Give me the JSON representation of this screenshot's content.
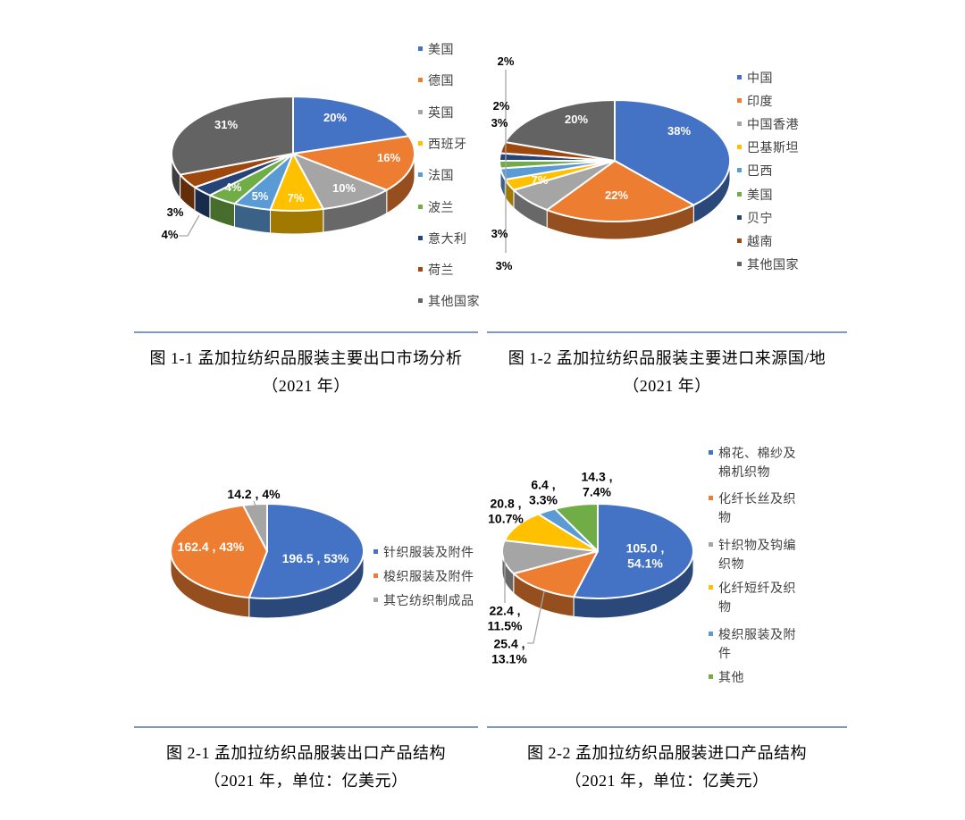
{
  "page": {
    "background": "#ffffff",
    "divider_color": "#7F97CB",
    "legend_text_color": "#404040",
    "palette": {
      "blue": "#4472C4",
      "orange": "#ED7D31",
      "gray": "#A5A5A5",
      "gold": "#FFC000",
      "lightblue": "#5B9BD5",
      "green": "#70AD47",
      "navy": "#264478",
      "brown": "#9E480E",
      "darkgray": "#636363"
    }
  },
  "chart_data": [
    {
      "id": "fig-1-1",
      "type": "pie",
      "caption_lines": [
        "图 1-1 孟加拉纺织品服装主要出口市场分析",
        "（2021 年）"
      ],
      "legend_position": "right",
      "slices": [
        {
          "label": "美国",
          "pct": 20,
          "text": "20%",
          "color": "#4472C4"
        },
        {
          "label": "德国",
          "pct": 16,
          "text": "16%",
          "color": "#ED7D31"
        },
        {
          "label": "英国",
          "pct": 10,
          "text": "10%",
          "color": "#A5A5A5"
        },
        {
          "label": "西班牙",
          "pct": 7,
          "text": "7%",
          "color": "#FFC000"
        },
        {
          "label": "法国",
          "pct": 5,
          "text": "5%",
          "color": "#5B9BD5"
        },
        {
          "label": "波兰",
          "pct": 4,
          "text": "4%",
          "color": "#70AD47"
        },
        {
          "label": "意大利",
          "pct": 3,
          "text": "3%",
          "color": "#264478"
        },
        {
          "label": "荷兰",
          "pct": 4,
          "text": "4%",
          "color": "#9E480E"
        },
        {
          "label": "其他国家",
          "pct": 31,
          "text": "31%",
          "color": "#636363"
        }
      ]
    },
    {
      "id": "fig-1-2",
      "type": "pie",
      "caption_lines": [
        "图 1-2 孟加拉纺织品服装主要进口来源国/地",
        "（2021 年）"
      ],
      "legend_position": "right",
      "slices": [
        {
          "label": "中国",
          "pct": 38,
          "text": "38%",
          "color": "#4472C4"
        },
        {
          "label": "印度",
          "pct": 22,
          "text": "22%",
          "color": "#ED7D31"
        },
        {
          "label": "中国香港",
          "pct": 7,
          "text": "7%",
          "color": "#A5A5A5"
        },
        {
          "label": "巴基斯坦",
          "pct": 3,
          "text": "3%",
          "color": "#FFC000"
        },
        {
          "label": "巴西",
          "pct": 3,
          "text": "3%",
          "color": "#5B9BD5"
        },
        {
          "label": "美国",
          "pct": 2,
          "text": "2%",
          "color": "#70AD47"
        },
        {
          "label": "贝宁",
          "pct": 2,
          "text": "2%",
          "color": "#264478"
        },
        {
          "label": "越南",
          "pct": 3,
          "text": "3%",
          "color": "#9E480E"
        },
        {
          "label": "其他国家",
          "pct": 20,
          "text": "20%",
          "color": "#636363"
        }
      ]
    },
    {
      "id": "fig-2-1",
      "type": "pie",
      "unit": "亿美元",
      "caption_lines": [
        "图 2-1 孟加拉纺织品服装出口产品结构",
        "（2021 年，单位：亿美元）"
      ],
      "legend_position": "right",
      "slices": [
        {
          "label": "针织服装及附件",
          "amount": 196.5,
          "pct": 53,
          "text": "196.5 , 53%",
          "color": "#4472C4"
        },
        {
          "label": "梭织服装及附件",
          "amount": 162.4,
          "pct": 43,
          "text": "162.4 , 43%",
          "color": "#ED7D31"
        },
        {
          "label": "其它纺织制成品",
          "amount": 14.2,
          "pct": 4,
          "text": "14.2 , 4%",
          "color": "#A5A5A5"
        }
      ]
    },
    {
      "id": "fig-2-2",
      "type": "pie",
      "unit": "亿美元",
      "caption_lines": [
        "图 2-2 孟加拉纺织品服装进口产品结构",
        "（2021 年，单位：亿美元）"
      ],
      "legend_position": "right",
      "slices": [
        {
          "label": "棉花、棉纱及棉机织物",
          "amount": 105.0,
          "pct": 54.1,
          "text": "105.0 ,\n54.1%",
          "color": "#4472C4"
        },
        {
          "label": "化纤长丝及织物",
          "amount": 25.4,
          "pct": 13.1,
          "text": "25.4 ,\n13.1%",
          "color": "#ED7D31"
        },
        {
          "label": "针织物及钩编织物",
          "amount": 22.4,
          "pct": 11.5,
          "text": "22.4 ,\n11.5%",
          "color": "#A5A5A5"
        },
        {
          "label": "化纤短纤及织物",
          "amount": 20.8,
          "pct": 10.7,
          "text": "20.8 ,\n10.7%",
          "color": "#FFC000"
        },
        {
          "label": "梭织服装及附件",
          "amount": 6.4,
          "pct": 3.3,
          "text": "6.4 ,\n3.3%",
          "color": "#5B9BD5"
        },
        {
          "label": "其他",
          "amount": 14.3,
          "pct": 7.4,
          "text": "14.3 ,\n7.4%",
          "color": "#70AD47"
        }
      ]
    }
  ]
}
